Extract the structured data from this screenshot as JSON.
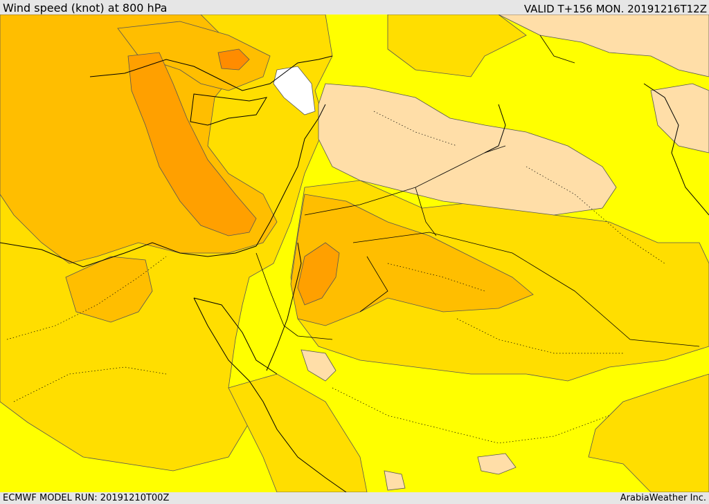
{
  "header": {
    "title": "Wind speed (knot) at 800 hPa",
    "valid": "VALID T+156 MON. 20191216T12Z"
  },
  "footer": {
    "model_run": "ECMWF MODEL RUN: 20191210T00Z",
    "credit": "ArabiaWeather Inc."
  },
  "colors": {
    "band_lightest": "#ffdea8",
    "band_yellow": "#ffff00",
    "band_gold": "#ffde00",
    "band_amber": "#ffbe00",
    "band_orange": "#ffa000",
    "band_deep": "#ff8c00",
    "calm": "#ffffff",
    "border": "#000000",
    "contour": "#555555"
  }
}
